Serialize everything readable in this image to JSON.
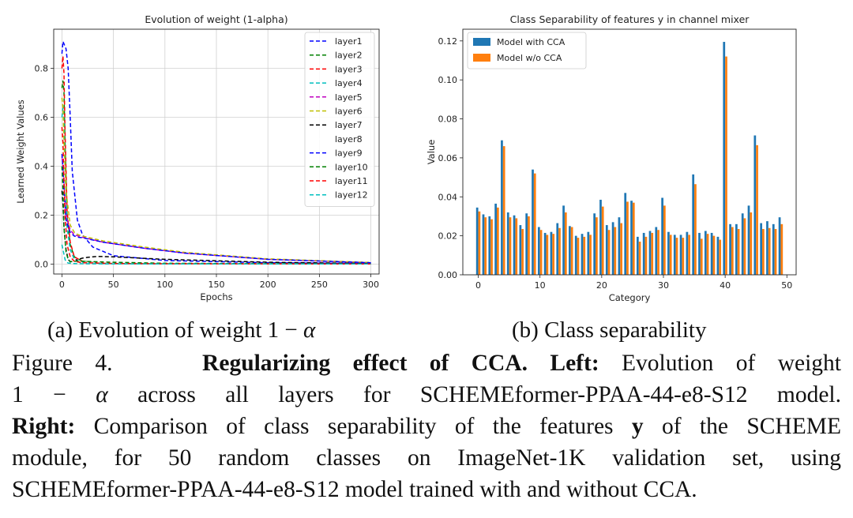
{
  "chart_data": [
    {
      "type": "line",
      "title": "Evolution of weight (1-alpha)",
      "xlabel": "Epochs",
      "ylabel": "Learned Weight Values",
      "xlim": [
        -8,
        308
      ],
      "ylim": [
        -0.04,
        0.96
      ],
      "xticks": [
        0,
        50,
        100,
        150,
        200,
        250,
        300
      ],
      "yticks": [
        0.0,
        0.2,
        0.4,
        0.6,
        0.8
      ],
      "ytick_labels": [
        "0.0",
        "0.2",
        "0.4",
        "0.6",
        "0.8"
      ],
      "grid": true,
      "legend_position": "top-right",
      "line_style": "dashed",
      "series": [
        {
          "name": "layer1",
          "color": "#0000ff",
          "x": [
            0,
            1,
            2,
            4,
            6,
            8,
            10,
            15,
            20,
            30,
            50,
            100,
            200,
            300
          ],
          "y": [
            0.86,
            0.91,
            0.9,
            0.88,
            0.8,
            0.6,
            0.38,
            0.18,
            0.12,
            0.07,
            0.035,
            0.015,
            0.006,
            0.003
          ]
        },
        {
          "name": "layer2",
          "color": "#008000",
          "x": [
            0,
            1,
            2,
            3,
            5,
            8,
            12,
            20,
            40,
            100,
            300
          ],
          "y": [
            0.72,
            0.75,
            0.7,
            0.5,
            0.2,
            0.08,
            0.03,
            0.012,
            0.005,
            0.002,
            0.001
          ]
        },
        {
          "name": "layer3",
          "color": "#ff0000",
          "x": [
            0,
            1,
            2,
            3,
            5,
            8,
            12,
            20,
            40,
            100,
            300
          ],
          "y": [
            0.8,
            0.85,
            0.78,
            0.55,
            0.22,
            0.09,
            0.03,
            0.012,
            0.005,
            0.002,
            0.001
          ]
        },
        {
          "name": "layer4",
          "color": "#00bfbf",
          "x": [
            0,
            1,
            2,
            3,
            5,
            8,
            12,
            20,
            40,
            100,
            300
          ],
          "y": [
            0.6,
            0.64,
            0.58,
            0.4,
            0.15,
            0.06,
            0.02,
            0.008,
            0.003,
            0.001,
            0.001
          ]
        },
        {
          "name": "layer5",
          "color": "#bf00bf",
          "x": [
            0,
            1,
            2,
            4,
            8,
            12,
            16,
            20,
            40,
            80,
            120,
            200,
            300
          ],
          "y": [
            0.44,
            0.4,
            0.32,
            0.2,
            0.14,
            0.12,
            0.115,
            0.11,
            0.09,
            0.065,
            0.045,
            0.02,
            0.006
          ]
        },
        {
          "name": "layer6",
          "color": "#bfbf00",
          "x": [
            0,
            1,
            2,
            4,
            8,
            12,
            16,
            20,
            40,
            80,
            120,
            200,
            300
          ],
          "y": [
            0.68,
            0.64,
            0.5,
            0.3,
            0.16,
            0.13,
            0.12,
            0.115,
            0.095,
            0.07,
            0.048,
            0.022,
            0.007
          ]
        },
        {
          "name": "layer7",
          "color": "#000000",
          "x": [
            0,
            1,
            2,
            4,
            6,
            8,
            12,
            16,
            20,
            25,
            30,
            35,
            50,
            100,
            200,
            300
          ],
          "y": [
            0.3,
            0.25,
            0.15,
            0.06,
            0.02,
            0.01,
            0.015,
            0.02,
            0.025,
            0.028,
            0.03,
            0.032,
            0.03,
            0.02,
            0.008,
            0.003
          ]
        },
        {
          "name": "layer8",
          "color": "#ffffff",
          "x": [
            0,
            1,
            2,
            4,
            8,
            20,
            100,
            300
          ],
          "y": [
            0.5,
            0.4,
            0.25,
            0.08,
            0.02,
            0.008,
            0.002,
            0.001
          ]
        },
        {
          "name": "layer9",
          "color": "#0000ff",
          "x": [
            0,
            1,
            2,
            4,
            8,
            12,
            16,
            20,
            40,
            80,
            120,
            200,
            300
          ],
          "y": [
            0.45,
            0.4,
            0.3,
            0.18,
            0.13,
            0.115,
            0.11,
            0.108,
            0.09,
            0.065,
            0.045,
            0.02,
            0.006
          ]
        },
        {
          "name": "layer10",
          "color": "#008000",
          "x": [
            0,
            1,
            2,
            4,
            6,
            8,
            12,
            20,
            50,
            100,
            300
          ],
          "y": [
            0.4,
            0.3,
            0.15,
            0.05,
            0.02,
            0.01,
            0.012,
            0.012,
            0.008,
            0.004,
            0.001
          ]
        },
        {
          "name": "layer11",
          "color": "#ff0000",
          "x": [
            0,
            1,
            2,
            3,
            5,
            8,
            12,
            20,
            50,
            100,
            300
          ],
          "y": [
            0.56,
            0.5,
            0.35,
            0.2,
            0.08,
            0.03,
            0.012,
            0.006,
            0.003,
            0.002,
            0.001
          ]
        },
        {
          "name": "layer12",
          "color": "#00bfbf",
          "x": [
            0,
            1,
            2,
            3,
            4,
            6,
            10,
            20,
            50,
            100,
            300
          ],
          "y": [
            0.08,
            0.06,
            0.04,
            0.02,
            0.01,
            0.005,
            0.003,
            0.002,
            0.001,
            0.001,
            0.001
          ]
        }
      ]
    },
    {
      "type": "bar",
      "title": "Class Separability of features y in channel mixer",
      "xlabel": "Category",
      "ylabel": "Value",
      "xlim": [
        -2.5,
        51.5
      ],
      "ylim": [
        0.0,
        0.126
      ],
      "xticks": [
        0,
        10,
        20,
        30,
        40,
        50
      ],
      "yticks": [
        0.0,
        0.02,
        0.04,
        0.06,
        0.08,
        0.1,
        0.12
      ],
      "ytick_labels": [
        "0.00",
        "0.02",
        "0.04",
        "0.06",
        "0.08",
        "0.10",
        "0.12"
      ],
      "grid": false,
      "legend_position": "top-left",
      "categories": [
        0,
        1,
        2,
        3,
        4,
        5,
        6,
        7,
        8,
        9,
        10,
        11,
        12,
        13,
        14,
        15,
        16,
        17,
        18,
        19,
        20,
        21,
        22,
        23,
        24,
        25,
        26,
        27,
        28,
        29,
        30,
        31,
        32,
        33,
        34,
        35,
        36,
        37,
        38,
        39,
        40,
        41,
        42,
        43,
        44,
        45,
        46,
        47,
        48,
        49
      ],
      "series": [
        {
          "name": "Model with CCA",
          "color": "#1f77b4",
          "values": [
            0.0345,
            0.031,
            0.03,
            0.0365,
            0.069,
            0.032,
            0.0305,
            0.0255,
            0.0315,
            0.054,
            0.0245,
            0.0215,
            0.022,
            0.0265,
            0.0355,
            0.025,
            0.02,
            0.021,
            0.022,
            0.0315,
            0.0385,
            0.0255,
            0.027,
            0.0295,
            0.042,
            0.038,
            0.0195,
            0.0215,
            0.0225,
            0.0245,
            0.0395,
            0.022,
            0.0205,
            0.0205,
            0.022,
            0.0515,
            0.0215,
            0.0225,
            0.0215,
            0.0195,
            0.1195,
            0.026,
            0.026,
            0.0315,
            0.0355,
            0.0715,
            0.0265,
            0.0275,
            0.026,
            0.0295
          ]
        },
        {
          "name": "Model w/o CCA",
          "color": "#ff7f0e",
          "values": [
            0.0325,
            0.0295,
            0.0285,
            0.0345,
            0.066,
            0.0295,
            0.029,
            0.0235,
            0.03,
            0.052,
            0.023,
            0.0205,
            0.021,
            0.024,
            0.032,
            0.0245,
            0.019,
            0.0195,
            0.0205,
            0.0295,
            0.035,
            0.023,
            0.0245,
            0.0265,
            0.0375,
            0.037,
            0.017,
            0.0195,
            0.0215,
            0.023,
            0.0355,
            0.0205,
            0.019,
            0.019,
            0.0205,
            0.0465,
            0.0185,
            0.021,
            0.02,
            0.018,
            0.112,
            0.0245,
            0.0235,
            0.029,
            0.032,
            0.0665,
            0.0235,
            0.024,
            0.0235,
            0.026
          ]
        }
      ]
    }
  ],
  "subcaptions": {
    "left_prefix": "(a) Evolution of weight 1 − ",
    "left_greek": "α",
    "right": "(b) Class separability"
  },
  "caption": {
    "line1_label": "Figure 4.",
    "line1_bold": "Regularizing effect of CCA. Left:",
    "line1_rest": " Evolution of weight",
    "line2_prefix": "1 − ",
    "line2_greek": "α",
    "line2_rest": " across all layers for SCHEMEformer-PPAA-44-e8-S12 model.",
    "line3_bold": "Right:",
    "line3_rest_a": " Comparison of class separability of the features ",
    "line3_bold_y": "y",
    "line3_rest_b": " of the SCHEME",
    "line4": "module, for 50 random classes on ImageNet-1K validation set, using",
    "line5": "SCHEMEformer-PPAA-44-e8-S12 model trained with and without CCA."
  }
}
